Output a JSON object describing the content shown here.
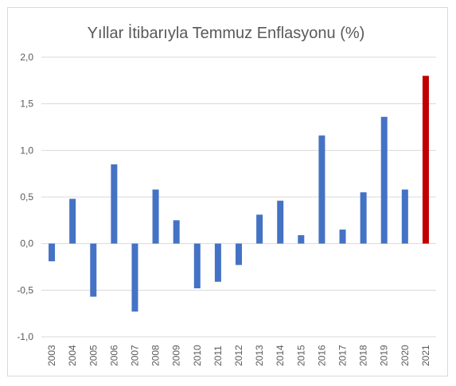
{
  "chart_data": {
    "type": "bar",
    "title": "Yıllar İtibarıyla Temmuz Enflasyonu (%)",
    "xlabel": "",
    "ylabel": "",
    "categories": [
      "2003",
      "2004",
      "2005",
      "2006",
      "2007",
      "2008",
      "2009",
      "2010",
      "2011",
      "2012",
      "2013",
      "2014",
      "2015",
      "2016",
      "2017",
      "2018",
      "2019",
      "2020",
      "2021"
    ],
    "values": [
      -0.19,
      0.48,
      -0.57,
      0.85,
      -0.73,
      0.58,
      0.25,
      -0.48,
      -0.41,
      -0.23,
      0.31,
      0.46,
      0.09,
      1.16,
      0.15,
      0.55,
      1.36,
      0.58,
      1.8
    ],
    "ylim": [
      -1.0,
      2.0
    ],
    "yticks": [
      "-1,0",
      "-0,5",
      "0,0",
      "0,5",
      "1,0",
      "1,5",
      "2,0"
    ],
    "ytick_values": [
      -1.0,
      -0.5,
      0.0,
      0.5,
      1.0,
      1.5,
      2.0
    ],
    "grid": true,
    "legend": "none",
    "colors": {
      "default": "#4472c4",
      "highlight": "#c00000",
      "grid": "#d9d9d9",
      "text": "#595959"
    },
    "highlight_category": "2021"
  }
}
